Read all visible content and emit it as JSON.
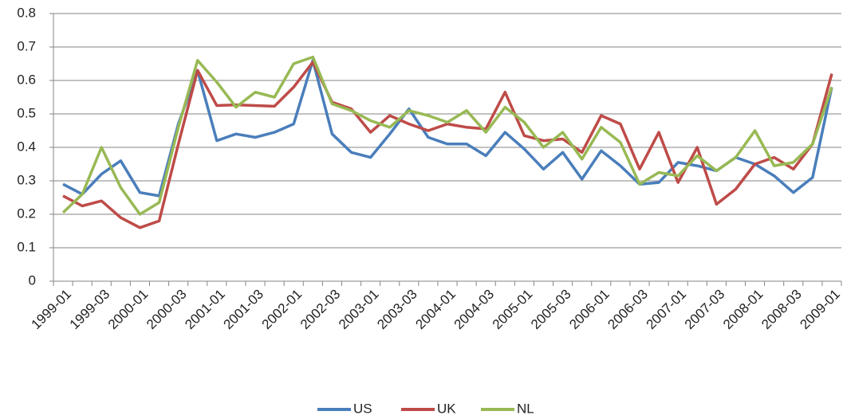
{
  "chart_data": {
    "type": "line",
    "categories": [
      "1999-01",
      null,
      "1999-03",
      null,
      "2000-01",
      null,
      "2000-03",
      null,
      "2001-01",
      null,
      "2001-03",
      null,
      "2002-01",
      null,
      "2002-03",
      null,
      "2003-01",
      null,
      "2003-03",
      null,
      "2004-01",
      null,
      "2004-03",
      null,
      "2005-01",
      null,
      "2005-03",
      null,
      "2006-01",
      null,
      "2006-03",
      null,
      "2007-01",
      null,
      "2007-03",
      null,
      "2008-01",
      null,
      "2008-03",
      null,
      "2009-01"
    ],
    "series": [
      {
        "name": "US",
        "color": "#4a7ebb",
        "values": [
          0.29,
          0.26,
          0.32,
          0.36,
          0.265,
          0.255,
          0.47,
          0.63,
          0.42,
          0.44,
          0.43,
          0.445,
          0.47,
          0.66,
          0.44,
          0.385,
          0.37,
          0.44,
          0.515,
          0.43,
          0.41,
          0.41,
          0.375,
          0.445,
          0.395,
          0.335,
          0.385,
          0.305,
          0.39,
          0.345,
          0.29,
          0.295,
          0.355,
          0.345,
          0.33,
          0.37,
          0.35,
          0.315,
          0.265,
          0.31,
          0.58
        ]
      },
      {
        "name": "UK",
        "color": "#be4b48",
        "values": [
          0.255,
          0.225,
          0.24,
          0.19,
          0.16,
          0.18,
          0.41,
          0.63,
          0.525,
          0.527,
          0.525,
          0.523,
          0.58,
          0.655,
          0.535,
          0.515,
          0.445,
          0.495,
          0.47,
          0.45,
          0.47,
          0.46,
          0.455,
          0.565,
          0.435,
          0.42,
          0.425,
          0.385,
          0.495,
          0.47,
          0.335,
          0.445,
          0.295,
          0.4,
          0.23,
          0.275,
          0.35,
          0.37,
          0.335,
          0.41,
          0.62
        ]
      },
      {
        "name": "NL",
        "color": "#98b954",
        "values": [
          0.205,
          0.26,
          0.4,
          0.28,
          0.2,
          0.235,
          0.46,
          0.66,
          0.595,
          0.52,
          0.565,
          0.55,
          0.65,
          0.67,
          0.53,
          0.51,
          0.48,
          0.46,
          0.51,
          0.495,
          0.475,
          0.51,
          0.445,
          0.52,
          0.475,
          0.4,
          0.445,
          0.365,
          0.46,
          0.415,
          0.29,
          0.325,
          0.315,
          0.375,
          0.33,
          0.37,
          0.45,
          0.345,
          0.355,
          0.41,
          0.58
        ]
      }
    ],
    "ylim": [
      0,
      0.8
    ],
    "yticks": [
      0,
      0.1,
      0.2,
      0.3,
      0.4,
      0.5,
      0.6,
      0.7,
      0.8
    ],
    "grid": true,
    "legend": "bottom"
  }
}
